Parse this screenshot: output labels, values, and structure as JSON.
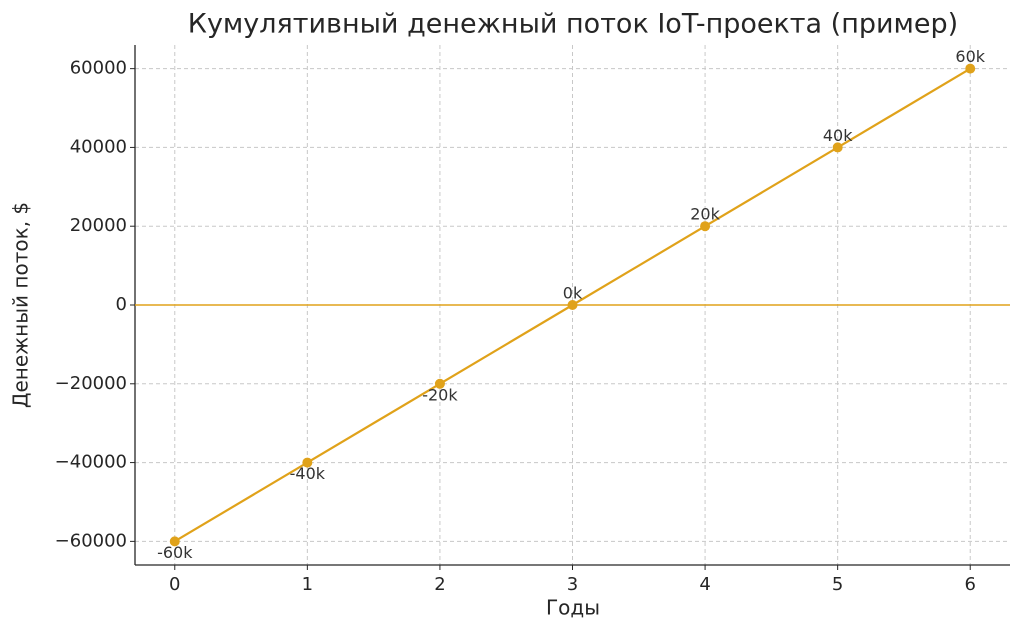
{
  "chart_data": {
    "type": "line",
    "title": "Кумулятивный денежный поток IoT-проекта (пример)",
    "xlabel": "Годы",
    "ylabel": "Денежный поток, $",
    "x": [
      0,
      1,
      2,
      3,
      4,
      5,
      6
    ],
    "series": [
      {
        "name": "Кумулятивный денежный поток",
        "color": "#e0a21a",
        "values": [
          -60000,
          -40000,
          -20000,
          0,
          20000,
          40000,
          60000
        ],
        "value_labels": [
          "-60k",
          "-40k",
          "-20k",
          "0k",
          "20k",
          "40k",
          "60k"
        ]
      }
    ],
    "reference_line": 0,
    "xlim": [
      -0.3,
      6.3
    ],
    "xticks": [
      0,
      1,
      2,
      3,
      4,
      5,
      6
    ],
    "ylim": [
      -66000,
      66000
    ],
    "yticks": [
      {
        "value": -60000,
        "label": "−60000"
      },
      {
        "value": -40000,
        "label": "−40000"
      },
      {
        "value": -20000,
        "label": "−20000"
      },
      0,
      20000,
      40000,
      60000
    ],
    "grid": true
  }
}
